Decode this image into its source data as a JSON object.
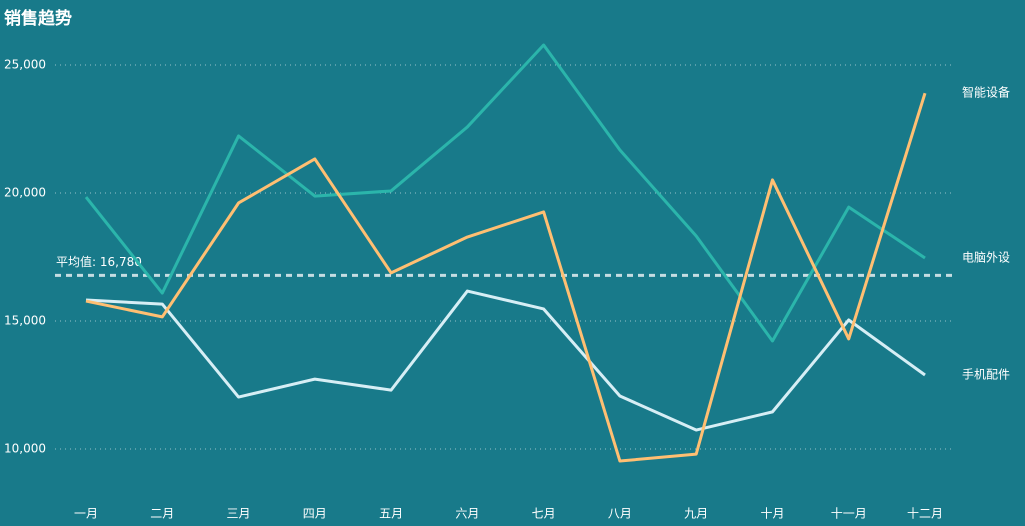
{
  "chart_data": {
    "type": "line",
    "title": "销售趋势",
    "categories": [
      "一月",
      "二月",
      "三月",
      "四月",
      "五月",
      "六月",
      "七月",
      "八月",
      "九月",
      "十月",
      "十一月",
      "十二月"
    ],
    "series": [
      {
        "name": "电脑外设",
        "color": "#2bb5ab",
        "values": [
          19840,
          16090,
          22230,
          19880,
          20080,
          22580,
          25780,
          21680,
          18320,
          14220,
          19450,
          17460
        ]
      },
      {
        "name": "手机配件",
        "color": "#d6eef5",
        "values": [
          15820,
          15660,
          12030,
          12730,
          12300,
          16170,
          15470,
          12070,
          10740,
          11450,
          15040,
          12890
        ]
      },
      {
        "name": "智能设备",
        "color": "#ffbf72",
        "values": [
          15780,
          15160,
          19610,
          21330,
          16880,
          18280,
          19260,
          9530,
          9800,
          20510,
          14300,
          23900
        ]
      }
    ],
    "average": {
      "value": 16780,
      "label": "平均值: 16,780"
    },
    "ylim": [
      9000,
      26000
    ],
    "yticks": [
      {
        "value": 10000,
        "label": "10,000"
      },
      {
        "value": 15000,
        "label": "15,000"
      },
      {
        "value": 20000,
        "label": "20,000"
      },
      {
        "value": 25000,
        "label": "25,000"
      }
    ],
    "grid": true
  }
}
